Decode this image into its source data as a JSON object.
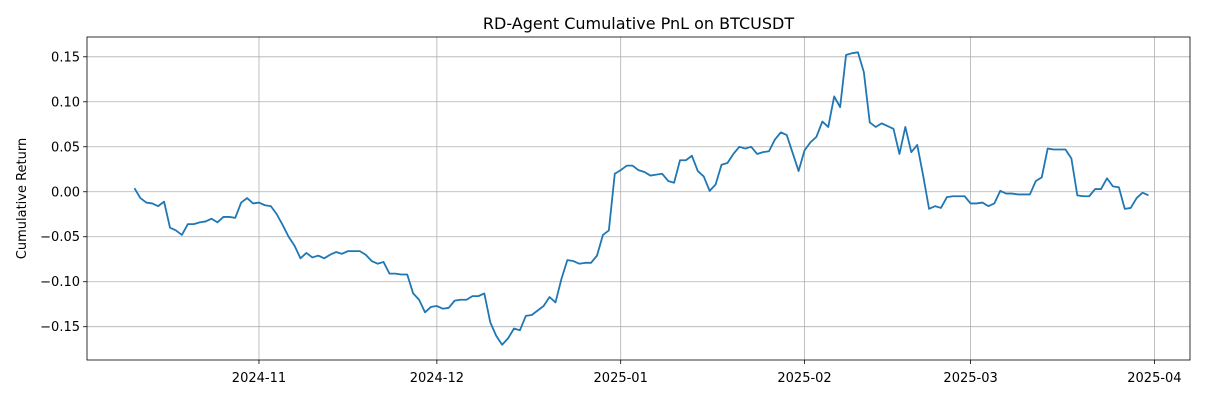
{
  "chart_data": {
    "type": "line",
    "title": "RD-Agent Cumulative PnL on BTCUSDT",
    "xlabel": "",
    "ylabel": "Cumulative Return",
    "x_is_date": true,
    "xlim": [
      "2024-10-03",
      "2025-04-07"
    ],
    "ylim": [
      -0.187,
      0.172
    ],
    "x_ticks": [
      "2024-11-01",
      "2024-12-01",
      "2025-01-01",
      "2025-02-01",
      "2025-03-01",
      "2025-04-01"
    ],
    "x_tick_labels": [
      "2024-11",
      "2024-12",
      "2025-01",
      "2025-02",
      "2025-03",
      "2025-04"
    ],
    "y_ticks": [
      -0.15,
      -0.1,
      -0.05,
      0.0,
      0.05,
      0.1,
      0.15
    ],
    "y_tick_labels": [
      "−0.15",
      "−0.10",
      "−0.05",
      "0.00",
      "0.05",
      "0.10",
      "0.15"
    ],
    "grid": true,
    "color": "#1f77b4",
    "series": [
      {
        "x": [
          "2024-10-11",
          "2024-10-12",
          "2024-10-13",
          "2024-10-14",
          "2024-10-15",
          "2024-10-16",
          "2024-10-17",
          "2024-10-18",
          "2024-10-19",
          "2024-10-20",
          "2024-10-21",
          "2024-10-22",
          "2024-10-23",
          "2024-10-24",
          "2024-10-25",
          "2024-10-26",
          "2024-10-27",
          "2024-10-28",
          "2024-10-29",
          "2024-10-30",
          "2024-10-31",
          "2024-11-01",
          "2024-11-02",
          "2024-11-03",
          "2024-11-04",
          "2024-11-05",
          "2024-11-06",
          "2024-11-07",
          "2024-11-08",
          "2024-11-09",
          "2024-11-10",
          "2024-11-11",
          "2024-11-12",
          "2024-11-13",
          "2024-11-14",
          "2024-11-15",
          "2024-11-16",
          "2024-11-17",
          "2024-11-18",
          "2024-11-19",
          "2024-11-20",
          "2024-11-21",
          "2024-11-22",
          "2024-11-23",
          "2024-11-24",
          "2024-11-25",
          "2024-11-26",
          "2024-11-27",
          "2024-11-28",
          "2024-11-29",
          "2024-11-30",
          "2024-12-01",
          "2024-12-02",
          "2024-12-03",
          "2024-12-04",
          "2024-12-05",
          "2024-12-06",
          "2024-12-07",
          "2024-12-08",
          "2024-12-09",
          "2024-12-10",
          "2024-12-11",
          "2024-12-12",
          "2024-12-13",
          "2024-12-14",
          "2024-12-15",
          "2024-12-16",
          "2024-12-17",
          "2024-12-18",
          "2024-12-19",
          "2024-12-20",
          "2024-12-21",
          "2024-12-22",
          "2024-12-23",
          "2024-12-24",
          "2024-12-25",
          "2024-12-26",
          "2024-12-27",
          "2024-12-28",
          "2024-12-29",
          "2024-12-30",
          "2024-12-31",
          "2025-01-01",
          "2025-01-02",
          "2025-01-03",
          "2025-01-04",
          "2025-01-05",
          "2025-01-06",
          "2025-01-07",
          "2025-01-08",
          "2025-01-09",
          "2025-01-10",
          "2025-01-11",
          "2025-01-12",
          "2025-01-13",
          "2025-01-14",
          "2025-01-15",
          "2025-01-16",
          "2025-01-17",
          "2025-01-18",
          "2025-01-19",
          "2025-01-20",
          "2025-01-21",
          "2025-01-22",
          "2025-01-23",
          "2025-01-24",
          "2025-01-25",
          "2025-01-26",
          "2025-01-27",
          "2025-01-28",
          "2025-01-29",
          "2025-01-30",
          "2025-01-31",
          "2025-02-01",
          "2025-02-02",
          "2025-02-03",
          "2025-02-04",
          "2025-02-05",
          "2025-02-06",
          "2025-02-07",
          "2025-02-08",
          "2025-02-09",
          "2025-02-10",
          "2025-02-11",
          "2025-02-12",
          "2025-02-13",
          "2025-02-14",
          "2025-02-15",
          "2025-02-16",
          "2025-02-17",
          "2025-02-18",
          "2025-02-19",
          "2025-02-20",
          "2025-02-21",
          "2025-02-22",
          "2025-02-23",
          "2025-02-24",
          "2025-02-25",
          "2025-02-26",
          "2025-02-27",
          "2025-02-28",
          "2025-03-01",
          "2025-03-02",
          "2025-03-03",
          "2025-03-04",
          "2025-03-05",
          "2025-03-06",
          "2025-03-07",
          "2025-03-08",
          "2025-03-09",
          "2025-03-10",
          "2025-03-11",
          "2025-03-12",
          "2025-03-13",
          "2025-03-14",
          "2025-03-15",
          "2025-03-16",
          "2025-03-17",
          "2025-03-18",
          "2025-03-19",
          "2025-03-20",
          "2025-03-21",
          "2025-03-22",
          "2025-03-23",
          "2025-03-24",
          "2025-03-25",
          "2025-03-26",
          "2025-03-27",
          "2025-03-28",
          "2025-03-29",
          "2025-03-30",
          "2025-03-31"
        ],
        "y": [
          0.004,
          -0.007,
          -0.012,
          -0.013,
          -0.016,
          -0.011,
          -0.04,
          -0.043,
          -0.048,
          -0.036,
          -0.036,
          -0.034,
          -0.033,
          -0.03,
          -0.034,
          -0.028,
          -0.028,
          -0.029,
          -0.012,
          -0.007,
          -0.013,
          -0.012,
          -0.015,
          -0.016,
          -0.025,
          -0.037,
          -0.05,
          -0.06,
          -0.074,
          -0.068,
          -0.073,
          -0.071,
          -0.074,
          -0.07,
          -0.067,
          -0.069,
          -0.066,
          -0.066,
          -0.066,
          -0.07,
          -0.077,
          -0.08,
          -0.078,
          -0.091,
          -0.091,
          -0.092,
          -0.092,
          -0.113,
          -0.12,
          -0.134,
          -0.128,
          -0.127,
          -0.13,
          -0.129,
          -0.121,
          -0.12,
          -0.12,
          -0.116,
          -0.116,
          -0.113,
          -0.145,
          -0.16,
          -0.17,
          -0.163,
          -0.152,
          -0.154,
          -0.138,
          -0.137,
          -0.132,
          -0.127,
          -0.117,
          -0.123,
          -0.097,
          -0.076,
          -0.077,
          -0.08,
          -0.079,
          -0.079,
          -0.071,
          -0.048,
          -0.043,
          0.02,
          0.024,
          0.029,
          0.029,
          0.024,
          0.022,
          0.018,
          0.019,
          0.02,
          0.012,
          0.01,
          0.035,
          0.035,
          0.04,
          0.023,
          0.017,
          0.001,
          0.008,
          0.03,
          0.032,
          0.042,
          0.05,
          0.048,
          0.05,
          0.042,
          0.044,
          0.045,
          0.058,
          0.066,
          0.063,
          0.043,
          0.023,
          0.046,
          0.055,
          0.061,
          0.078,
          0.072,
          0.106,
          0.094,
          0.152,
          0.154,
          0.155,
          0.133,
          0.077,
          0.072,
          0.076,
          0.073,
          0.07,
          0.042,
          0.072,
          0.044,
          0.052,
          0.018,
          -0.019,
          -0.016,
          -0.018,
          -0.006,
          -0.005,
          -0.005,
          -0.005,
          -0.013,
          -0.013,
          -0.012,
          -0.016,
          -0.013,
          0.001,
          -0.002,
          -0.002,
          -0.003,
          -0.003,
          -0.003,
          0.012,
          0.016,
          0.048,
          0.047,
          0.047,
          0.047,
          0.037,
          -0.004,
          -0.005,
          -0.005,
          0.003,
          0.003,
          0.015,
          0.006,
          0.005,
          -0.019,
          -0.018,
          -0.007,
          -0.001,
          -0.004
        ]
      }
    ]
  }
}
